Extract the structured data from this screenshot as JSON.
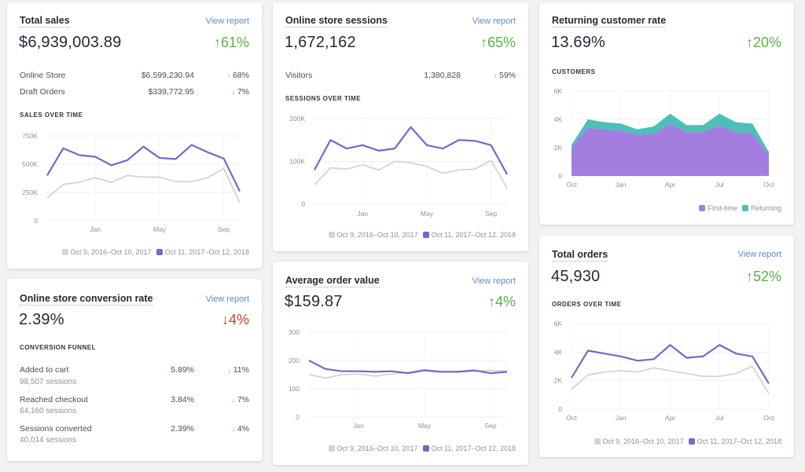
{
  "colors": {
    "current": "#7e63c9",
    "previous": "#d4d4d6",
    "first_time": "#a37de0",
    "returning": "#4bc0b6",
    "up": "#58b346",
    "down": "#c9412b",
    "link": "#5c8fc4"
  },
  "cards": {
    "total_sales": {
      "title": "Total sales",
      "link": "View report",
      "value": "$6,939,003.89",
      "change": "61%",
      "change_dir": "up",
      "rows": [
        {
          "label": "Online Store",
          "value": "$6,599,230.94",
          "change": "68%",
          "dir": "up"
        },
        {
          "label": "Draft Orders",
          "value": "$339,772.95",
          "change": "7%",
          "dir": "down"
        }
      ],
      "section": "SALES OVER TIME"
    },
    "conversion": {
      "title": "Online store conversion rate",
      "link": "View report",
      "value": "2.39%",
      "change": "4%",
      "change_dir": "down",
      "section": "CONVERSION FUNNEL",
      "rows": [
        {
          "label": "Added to cart",
          "sub": "98,507 sessions",
          "value": "5.89%",
          "change": "11%",
          "dir": "down"
        },
        {
          "label": "Reached checkout",
          "sub": "64,160 sessions",
          "value": "3.84%",
          "change": "7%",
          "dir": "down"
        },
        {
          "label": "Sessions converted",
          "sub": "40,014 sessions",
          "value": "2.39%",
          "change": "4%",
          "dir": "down"
        }
      ]
    },
    "sessions": {
      "title": "Online store sessions",
      "link": "View report",
      "value": "1,672,162",
      "change": "65%",
      "change_dir": "up",
      "rows": [
        {
          "label": "Visitors",
          "value": "1,380,828",
          "change": "59%",
          "dir": "up"
        }
      ],
      "section": "SESSIONS OVER TIME"
    },
    "aov": {
      "title": "Average order value",
      "link": "View report",
      "value": "$159.87",
      "change": "4%",
      "change_dir": "up"
    },
    "returning": {
      "title": "Returning customer rate",
      "value": "13.69%",
      "change": "20%",
      "change_dir": "up",
      "section": "CUSTOMERS"
    },
    "orders": {
      "title": "Total orders",
      "link": "View report",
      "value": "45,930",
      "change": "52%",
      "change_dir": "up",
      "section": "ORDERS OVER TIME"
    }
  },
  "legend": {
    "previous": "Oct 9, 2016–Oct 10, 2017",
    "current": "Oct 11, 2017–Oct 12, 2018",
    "first_time": "First-time",
    "returning": "Returning"
  },
  "chart_data": [
    {
      "id": "sales",
      "type": "line",
      "ylim": [
        0,
        750000
      ],
      "yticks": [
        0,
        250000,
        500000,
        750000
      ],
      "ytick_labels": [
        "0",
        "250K",
        "500K",
        "750K"
      ],
      "xticks": [
        3,
        7,
        11
      ],
      "xtick_labels": [
        "Jan",
        "May",
        "Sep"
      ],
      "grid": true,
      "legend": "bottom-right",
      "series": [
        {
          "name": "Oct 9, 2016–Oct 10, 2017",
          "values": [
            200000,
            320000,
            340000,
            380000,
            340000,
            400000,
            385000,
            385000,
            345000,
            345000,
            380000,
            460000,
            160000
          ]
        },
        {
          "name": "Oct 11, 2017–Oct 12, 2018",
          "values": [
            400000,
            640000,
            580000,
            565000,
            490000,
            535000,
            655000,
            555000,
            545000,
            670000,
            605000,
            550000,
            260000
          ]
        }
      ]
    },
    {
      "id": "sessions",
      "type": "line",
      "ylim": [
        0,
        200000
      ],
      "yticks": [
        0,
        100000,
        200000
      ],
      "ytick_labels": [
        "0",
        "100K",
        "200K"
      ],
      "xticks": [
        3,
        7,
        11
      ],
      "xtick_labels": [
        "Jan",
        "May",
        "Sep"
      ],
      "grid": true,
      "legend": "bottom-right",
      "series": [
        {
          "name": "Oct 9, 2016–Oct 10, 2017",
          "values": [
            45000,
            85000,
            82000,
            92000,
            80000,
            100000,
            97000,
            88000,
            72000,
            80000,
            82000,
            102000,
            38000
          ]
        },
        {
          "name": "Oct 11, 2017–Oct 12, 2018",
          "values": [
            80000,
            150000,
            130000,
            138000,
            125000,
            130000,
            180000,
            138000,
            130000,
            150000,
            148000,
            138000,
            70000
          ]
        }
      ]
    },
    {
      "id": "aov",
      "type": "line",
      "ylim": [
        0,
        300
      ],
      "yticks": [
        0,
        100,
        200,
        300
      ],
      "ytick_labels": [
        "0",
        "100",
        "200",
        "300"
      ],
      "xticks": [
        3,
        7,
        11
      ],
      "xtick_labels": [
        "Jan",
        "May",
        "Sep"
      ],
      "grid": true,
      "legend": "bottom-right",
      "series": [
        {
          "name": "Oct 9, 2016–Oct 10, 2017",
          "values": [
            150,
            138,
            150,
            152,
            145,
            152,
            158,
            168,
            160,
            160,
            162,
            165,
            162
          ]
        },
        {
          "name": "Oct 11, 2017–Oct 12, 2018",
          "values": [
            200,
            170,
            162,
            162,
            160,
            162,
            155,
            165,
            160,
            160,
            165,
            155,
            160
          ]
        }
      ]
    },
    {
      "id": "customers",
      "type": "area",
      "stacked": true,
      "ylim": [
        0,
        6000
      ],
      "yticks": [
        0,
        2000,
        4000,
        6000
      ],
      "ytick_labels": [
        "0",
        "2K",
        "4K",
        "6K"
      ],
      "xticks": [
        0,
        3,
        6,
        9,
        12
      ],
      "xtick_labels": [
        "Oct",
        "Jan",
        "Apr",
        "Jul",
        "Oct"
      ],
      "grid": true,
      "legend": "bottom-right",
      "series": [
        {
          "name": "First-time",
          "values": [
            2000,
            3400,
            3300,
            3200,
            2900,
            3000,
            3700,
            3100,
            3100,
            3600,
            3100,
            3000,
            1500
          ]
        },
        {
          "name": "Returning",
          "values": [
            200,
            600,
            500,
            500,
            400,
            500,
            700,
            500,
            500,
            800,
            700,
            700,
            200
          ]
        }
      ]
    },
    {
      "id": "orders",
      "type": "line",
      "ylim": [
        0,
        6000
      ],
      "yticks": [
        0,
        2000,
        4000,
        6000
      ],
      "ytick_labels": [
        "0",
        "2K",
        "4K",
        "6K"
      ],
      "xticks": [
        0,
        3,
        6,
        9,
        12
      ],
      "xtick_labels": [
        "Oct",
        "Jan",
        "Apr",
        "Jul",
        "Oct"
      ],
      "grid": true,
      "legend": "bottom-right",
      "series": [
        {
          "name": "Oct 9, 2016–Oct 10, 2017",
          "values": [
            1400,
            2400,
            2600,
            2700,
            2600,
            2900,
            2700,
            2500,
            2300,
            2300,
            2500,
            3000,
            1100
          ]
        },
        {
          "name": "Oct 11, 2017–Oct 12, 2018",
          "values": [
            2200,
            4100,
            3900,
            3700,
            3400,
            3500,
            4500,
            3600,
            3700,
            4500,
            3900,
            3700,
            1800
          ]
        }
      ]
    }
  ]
}
